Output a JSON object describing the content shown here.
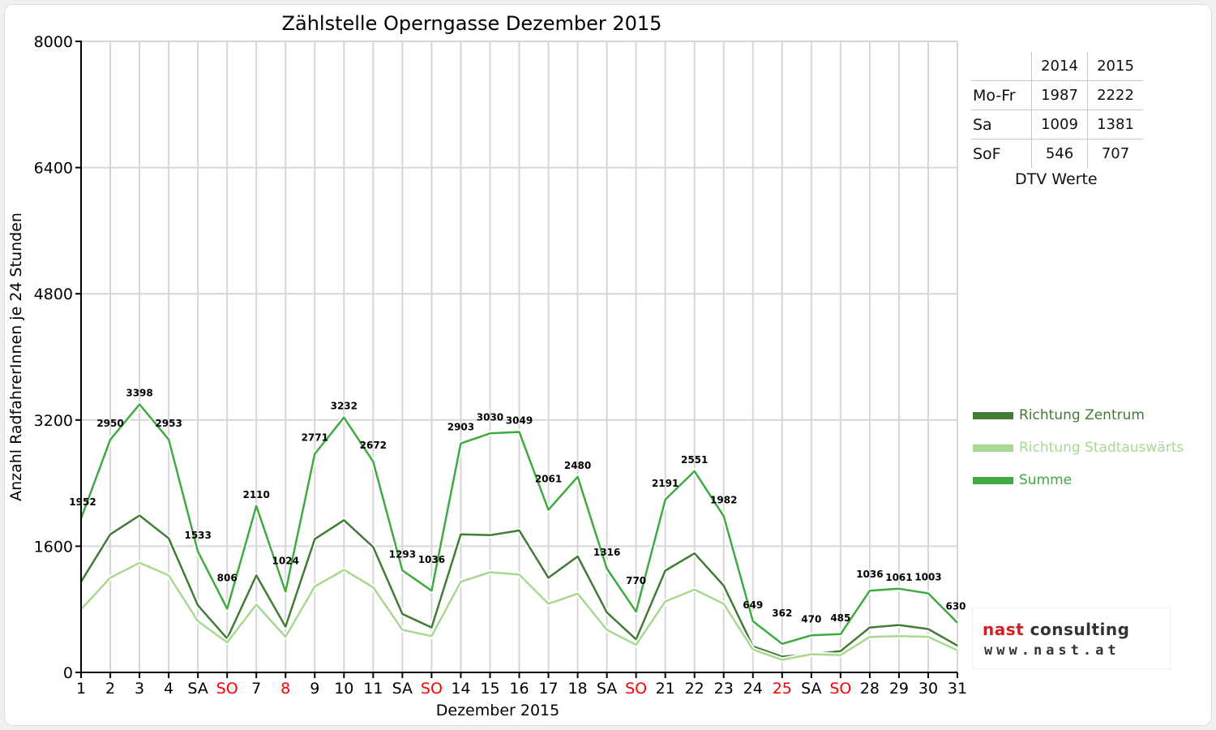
{
  "chart_data": {
    "type": "line",
    "title": "Zählstelle Operngasse Dezember 2015",
    "xlabel": "Dezember 2015",
    "ylabel": "Anzahl RadfahrerInnen je 24 Stunden",
    "ylim": [
      0,
      8000
    ],
    "yticks": [
      "0",
      "1600",
      "3200",
      "4800",
      "6400",
      "8000"
    ],
    "grid": true,
    "legend_position": "right",
    "categories": [
      "1",
      "2",
      "3",
      "4",
      "SA",
      "SO",
      "7",
      "8",
      "9",
      "10",
      "11",
      "SA",
      "SO",
      "14",
      "15",
      "16",
      "17",
      "18",
      "SA",
      "SO",
      "21",
      "22",
      "23",
      "24",
      "25",
      "SA",
      "SO",
      "28",
      "29",
      "30",
      "31"
    ],
    "category_colors": [
      "#000000",
      "#000000",
      "#000000",
      "#000000",
      "#000000",
      "#ff0000",
      "#000000",
      "#ff0000",
      "#000000",
      "#000000",
      "#000000",
      "#000000",
      "#ff0000",
      "#000000",
      "#000000",
      "#000000",
      "#000000",
      "#000000",
      "#000000",
      "#ff0000",
      "#000000",
      "#000000",
      "#000000",
      "#000000",
      "#ff0000",
      "#000000",
      "#ff0000",
      "#000000",
      "#000000",
      "#000000",
      "#000000"
    ],
    "series": [
      {
        "name": "Richtung Zentrum",
        "color": "#417b35",
        "values": [
          1150,
          1750,
          1990,
          1700,
          850,
          430,
          1230,
          580,
          1690,
          1930,
          1590,
          740,
          570,
          1750,
          1740,
          1800,
          1200,
          1470,
          760,
          420,
          1290,
          1510,
          1100,
          330,
          200,
          230,
          270,
          570,
          600,
          550,
          340
        ]
      },
      {
        "name": "Richtung Stadtauswärts",
        "color": "#a8d891",
        "values": [
          800,
          1200,
          1390,
          1230,
          650,
          380,
          860,
          450,
          1090,
          1300,
          1080,
          540,
          460,
          1150,
          1270,
          1240,
          870,
          1000,
          540,
          350,
          900,
          1050,
          870,
          290,
          160,
          230,
          220,
          450,
          460,
          450,
          280
        ]
      },
      {
        "name": "Summe",
        "color": "#3faa3f",
        "values": [
          1952,
          2950,
          3398,
          2953,
          1533,
          806,
          2110,
          1024,
          2771,
          3232,
          2672,
          1293,
          1036,
          2903,
          3030,
          3049,
          2061,
          2480,
          1316,
          770,
          2191,
          2551,
          1982,
          649,
          362,
          470,
          485,
          1036,
          1061,
          1003,
          630
        ]
      }
    ],
    "data_labels": [
      "1952",
      "2950",
      "3398",
      "2953",
      "1533",
      "806",
      "2110",
      "1024",
      "2771",
      "3232",
      "2672",
      "1293",
      "1036",
      "2903",
      "3030",
      "3049",
      "2061",
      "2480",
      "1316",
      "770",
      "2191",
      "2551",
      "1982",
      "649",
      "362",
      "470",
      "485",
      "1036",
      "1061",
      "1003",
      "630"
    ]
  },
  "stats_table": {
    "years": [
      "2014",
      "2015"
    ],
    "rows": [
      {
        "label": "Mo-Fr",
        "v2014": "1987",
        "v2015": "2222"
      },
      {
        "label": "Sa",
        "v2014": "1009",
        "v2015": "1381"
      },
      {
        "label": "SoF",
        "v2014": "546",
        "v2015": "707"
      }
    ],
    "caption": "DTV Werte"
  },
  "logo": {
    "word1": "nast",
    "word2": " consulting",
    "url": "www.nast.at"
  }
}
